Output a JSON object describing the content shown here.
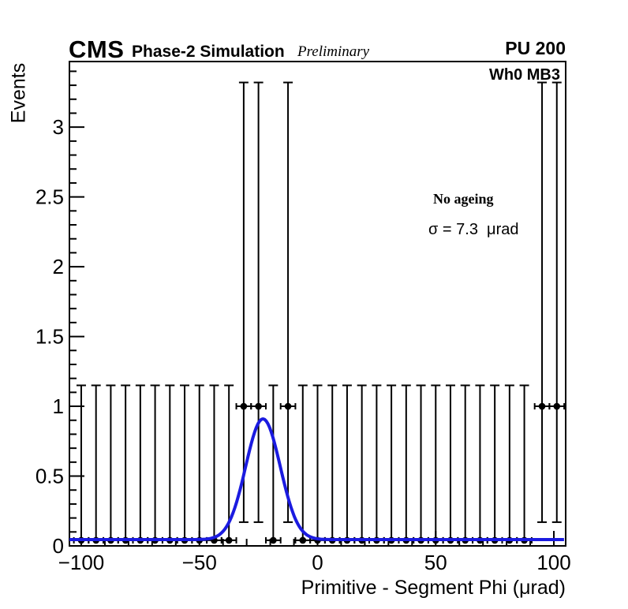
{
  "header": {
    "experiment": "CMS",
    "subtitle": "Phase-2 Simulation",
    "status": "Preliminary",
    "pileup": "PU 200"
  },
  "plot": {
    "region_label": "Wh0 MB3",
    "annotation_title": "No ageing",
    "annotation_sigma": "σ = 7.3  μrad"
  },
  "axes": {
    "x_title": "Primitive - Segment Phi (μrad)",
    "y_title": "Events"
  },
  "colors": {
    "fit_blue": "#1b1be0",
    "marker_black": "#000000",
    "background": "#ffffff"
  },
  "chart_data": {
    "type": "scatter",
    "description": "Histogram of (trigger primitive - segment) phi residuals with error bars and a Gaussian + constant fit",
    "title": "",
    "xlabel": "Primitive - Segment Phi (μrad)",
    "ylabel": "Events",
    "x_range": [
      -105,
      105
    ],
    "y_range": [
      0,
      3.47
    ],
    "x_tick_values": [
      -100,
      -50,
      0,
      50,
      100
    ],
    "x_tick_labels": [
      "−100",
      "−50",
      "0",
      "50",
      "100"
    ],
    "x_minor_step": 10,
    "y_tick_values": [
      0,
      0.5,
      1,
      1.5,
      2,
      2.5,
      3
    ],
    "y_tick_labels": [
      "0",
      "0.5",
      "1",
      "1.5",
      "2",
      "2.5",
      "3"
    ],
    "y_minor_step": 0.1,
    "grid": false,
    "legend": "none",
    "bin_half_width": 3.125,
    "unit_points": {
      "x": [
        -31.25,
        -25,
        -12.5,
        95,
        101.25
      ],
      "y": 1,
      "err_low_cap": 0.17,
      "err_high_cap": 3.32
    },
    "baseline_points": {
      "x": [
        -100,
        -93.75,
        -87.5,
        -81.25,
        -75,
        -68.75,
        -62.5,
        -56.25,
        -50,
        -43.75,
        -37.5,
        -18.75,
        -6.25,
        0,
        6.25,
        12.5,
        18.75,
        25,
        31.25,
        37.5,
        43.75,
        50,
        56.25,
        62.5,
        68.75,
        75,
        81.25,
        87.5
      ],
      "y": 0.04,
      "err_high_cap": 1.15
    },
    "fit_curve": {
      "model": "gaussian_plus_constant",
      "mean": -23.1,
      "sigma": 7.3,
      "amplitude": 0.865,
      "constant": 0.045,
      "color": "#1b1be0"
    }
  }
}
